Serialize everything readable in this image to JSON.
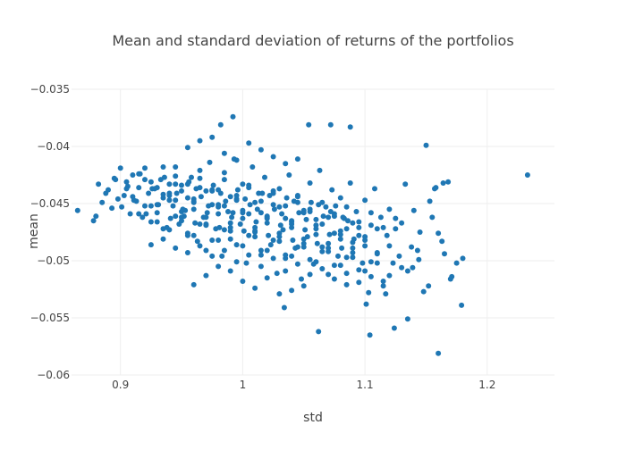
{
  "chart_data": {
    "type": "scatter",
    "title": "Mean and standard deviation of returns of the portfolios",
    "xlabel": "std",
    "ylabel": "mean",
    "xlim": [
      0.86,
      1.255
    ],
    "ylim": [
      -0.06,
      -0.035
    ],
    "x_ticks": [
      0.9,
      1.0,
      1.1,
      1.2
    ],
    "x_tick_labels": [
      "0.9",
      "1",
      "1.1",
      "1.2"
    ],
    "y_ticks": [
      -0.06,
      -0.055,
      -0.05,
      -0.045,
      -0.04,
      -0.035
    ],
    "y_tick_labels": [
      "−0.06",
      "−0.055",
      "−0.05",
      "−0.045",
      "−0.04",
      "−0.035"
    ],
    "grid": true,
    "legend": "none",
    "marker_color": "#1f77b4",
    "series": [
      {
        "x": [
          0.865,
          0.878,
          0.88,
          0.882,
          0.885,
          0.888,
          0.89,
          0.893,
          0.895,
          0.898,
          0.9,
          0.903,
          0.905,
          0.908,
          0.91,
          0.913,
          0.915,
          0.918,
          0.92,
          0.923,
          0.925,
          0.928,
          0.93,
          0.933,
          0.935,
          0.938,
          0.94,
          0.943,
          0.945,
          0.948,
          0.95,
          0.953,
          0.955,
          0.958,
          0.96,
          0.963,
          0.965,
          0.968,
          0.97,
          0.973,
          0.975,
          0.978,
          0.98,
          0.983,
          0.985,
          0.988,
          0.99,
          0.993,
          0.995,
          0.998,
          1.0,
          1.003,
          1.005,
          1.008,
          1.01,
          1.013,
          1.015,
          1.018,
          1.02,
          1.023,
          1.025,
          1.028,
          1.03,
          1.033,
          1.035,
          1.038,
          1.04,
          1.043,
          1.045,
          1.048,
          1.05,
          1.053,
          1.055,
          1.058,
          1.06,
          1.063,
          1.065,
          1.068,
          1.07,
          1.073,
          1.075,
          1.078,
          1.08,
          1.083,
          1.085,
          1.088,
          1.09,
          1.093,
          1.095,
          1.098,
          1.1,
          1.103,
          1.105,
          1.108,
          1.11,
          1.113,
          1.115,
          1.118,
          1.12,
          1.123,
          1.125,
          1.128,
          1.13,
          1.133,
          1.135,
          1.138,
          1.14,
          1.143,
          1.145,
          1.148,
          1.15,
          1.153,
          1.155,
          1.158,
          1.16,
          1.163,
          1.165,
          1.168,
          1.17,
          1.175,
          1.18,
          1.233,
          0.955,
          0.965,
          0.975,
          0.985,
          0.995,
          1.005,
          1.015,
          1.025,
          1.035,
          1.045,
          0.96,
          0.97,
          0.98,
          0.99,
          1.0,
          1.01,
          1.02,
          1.03,
          1.04,
          1.05,
          0.945,
          0.952,
          0.962,
          0.972,
          0.982,
          0.992,
          1.002,
          1.012,
          1.022,
          1.032,
          1.042,
          1.052,
          1.062,
          1.072,
          1.082,
          0.905,
          0.915,
          0.925,
          0.935,
          0.945,
          0.955,
          0.965,
          0.975,
          0.985,
          0.995,
          1.005,
          1.015,
          1.025,
          1.035,
          1.045,
          1.055,
          1.065,
          1.075,
          1.085,
          1.095,
          0.91,
          0.92,
          0.93,
          0.94,
          0.95,
          0.96,
          0.97,
          0.98,
          0.99,
          1.0,
          1.01,
          1.02,
          1.03,
          1.04,
          1.05,
          1.06,
          1.07,
          1.08,
          1.09,
          1.1,
          0.915,
          0.925,
          0.935,
          0.945,
          0.955,
          0.965,
          0.975,
          0.985,
          0.995,
          1.005,
          1.015,
          1.025,
          1.035,
          1.045,
          1.055,
          1.065,
          1.075,
          1.085,
          1.095,
          1.105,
          0.92,
          0.93,
          0.94,
          0.95,
          0.96,
          0.97,
          0.98,
          0.99,
          1.0,
          1.01,
          1.02,
          1.03,
          1.04,
          1.05,
          1.06,
          1.07,
          1.08,
          1.09,
          1.1,
          1.11,
          0.925,
          0.935,
          0.945,
          0.955,
          0.965,
          0.975,
          0.985,
          0.995,
          1.005,
          1.015,
          1.025,
          1.035,
          1.045,
          1.055,
          1.065,
          1.075,
          1.085,
          1.095,
          1.105,
          1.115,
          0.93,
          0.94,
          0.95,
          0.96,
          0.97,
          0.98,
          0.99,
          1.0,
          1.01,
          1.02,
          1.03,
          1.04,
          1.05,
          1.06,
          1.07,
          1.08,
          1.09,
          1.1,
          1.11,
          1.12,
          0.935,
          0.945,
          0.955,
          0.965,
          0.975,
          0.985,
          0.995,
          1.005,
          1.015,
          1.025,
          1.035,
          1.045,
          1.055,
          1.065,
          1.075,
          1.085,
          1.095,
          1.105,
          1.115,
          1.125,
          0.94,
          0.95,
          0.96,
          0.97,
          0.98,
          0.99,
          1.0,
          1.01,
          1.02,
          1.03,
          1.04,
          1.05,
          1.06,
          1.07,
          1.08,
          1.09,
          1.1,
          1.11,
          1.12,
          1.13,
          0.896,
          0.906,
          0.916,
          0.926,
          0.936,
          0.946,
          0.956,
          0.966,
          0.976,
          0.986,
          0.996,
          1.006,
          1.016,
          1.026,
          1.036,
          1.046,
          1.056,
          1.066,
          1.076,
          1.086,
          0.901,
          0.911,
          0.921,
          0.931,
          0.941,
          0.951,
          0.961,
          0.971,
          0.981,
          0.991,
          1.001,
          1.011,
          1.021,
          1.031,
          1.041,
          1.051,
          1.061,
          1.071,
          1.081,
          1.091,
          1.054,
          1.034,
          1.072,
          1.062,
          0.992,
          0.982,
          1.088,
          1.104,
          1.101,
          1.124,
          1.135,
          1.117,
          1.152,
          1.157,
          1.144,
          1.139,
          1.164,
          1.171,
          1.179,
          1.16
        ],
        "y": [
          -0.0456,
          -0.0465,
          -0.0461,
          -0.0433,
          -0.0449,
          -0.0441,
          -0.0438,
          -0.0454,
          -0.0428,
          -0.0446,
          -0.0419,
          -0.0443,
          -0.0431,
          -0.0459,
          -0.0425,
          -0.0448,
          -0.0436,
          -0.0462,
          -0.0419,
          -0.0441,
          -0.0452,
          -0.0437,
          -0.0466,
          -0.0429,
          -0.0445,
          -0.0471,
          -0.0433,
          -0.0452,
          -0.0418,
          -0.0468,
          -0.0439,
          -0.0456,
          -0.0478,
          -0.0427,
          -0.0449,
          -0.0483,
          -0.0436,
          -0.0462,
          -0.0491,
          -0.0414,
          -0.0451,
          -0.0472,
          -0.0438,
          -0.0496,
          -0.0423,
          -0.0457,
          -0.0481,
          -0.0411,
          -0.0446,
          -0.0468,
          -0.0433,
          -0.0502,
          -0.0459,
          -0.0418,
          -0.0475,
          -0.0441,
          -0.0495,
          -0.0427,
          -0.0462,
          -0.0486,
          -0.0451,
          -0.0511,
          -0.0437,
          -0.0473,
          -0.0498,
          -0.0425,
          -0.0466,
          -0.0489,
          -0.0443,
          -0.0516,
          -0.0456,
          -0.0479,
          -0.0432,
          -0.0503,
          -0.0464,
          -0.0421,
          -0.0488,
          -0.0453,
          -0.0512,
          -0.0438,
          -0.0476,
          -0.0496,
          -0.0445,
          -0.0463,
          -0.0521,
          -0.0432,
          -0.0484,
          -0.0457,
          -0.0471,
          -0.0502,
          -0.0447,
          -0.0528,
          -0.0469,
          -0.0437,
          -0.0493,
          -0.0462,
          -0.0518,
          -0.0478,
          -0.0455,
          -0.0502,
          -0.0472,
          -0.0496,
          -0.0467,
          -0.0433,
          -0.0509,
          -0.0488,
          -0.0456,
          -0.0491,
          -0.0475,
          -0.0527,
          -0.0399,
          -0.0448,
          -0.0462,
          -0.0436,
          -0.0476,
          -0.0483,
          -0.0494,
          -0.0431,
          -0.0516,
          -0.0502,
          -0.0498,
          -0.0425,
          -0.0401,
          -0.0395,
          -0.0392,
          -0.0406,
          -0.0412,
          -0.0397,
          -0.0403,
          -0.0409,
          -0.0415,
          -0.0411,
          -0.0521,
          -0.0513,
          -0.0505,
          -0.0509,
          -0.0518,
          -0.0524,
          -0.0515,
          -0.0529,
          -0.0526,
          -0.0522,
          -0.0447,
          -0.0461,
          -0.0437,
          -0.0452,
          -0.0441,
          -0.0458,
          -0.0446,
          -0.0455,
          -0.0443,
          -0.0459,
          -0.0448,
          -0.0464,
          -0.0451,
          -0.0457,
          -0.0462,
          -0.0437,
          -0.0424,
          -0.0431,
          -0.0442,
          -0.0433,
          -0.0445,
          -0.0428,
          -0.0439,
          -0.0452,
          -0.0447,
          -0.0436,
          -0.0458,
          -0.0441,
          -0.0463,
          -0.0449,
          -0.0455,
          -0.0468,
          -0.0459,
          -0.0472,
          -0.0478,
          -0.0444,
          -0.0452,
          -0.0458,
          -0.0447,
          -0.0462,
          -0.0455,
          -0.0468,
          -0.0459,
          -0.0471,
          -0.0463,
          -0.0474,
          -0.0467,
          -0.0479,
          -0.0471,
          -0.0485,
          -0.0477,
          -0.0489,
          -0.0481,
          -0.0493,
          -0.0487,
          -0.0459,
          -0.0466,
          -0.0472,
          -0.0461,
          -0.0476,
          -0.0468,
          -0.0482,
          -0.0473,
          -0.0486,
          -0.0478,
          -0.0491,
          -0.0482,
          -0.0495,
          -0.0488,
          -0.0499,
          -0.0492,
          -0.0504,
          -0.0497,
          -0.0508,
          -0.0501,
          -0.0429,
          -0.0436,
          -0.0441,
          -0.0434,
          -0.0446,
          -0.0439,
          -0.0451,
          -0.0444,
          -0.0456,
          -0.0449,
          -0.0461,
          -0.0453,
          -0.0465,
          -0.0458,
          -0.0469,
          -0.0462,
          -0.0474,
          -0.0467,
          -0.0479,
          -0.0472,
          -0.0486,
          -0.0481,
          -0.0489,
          -0.0493,
          -0.0487,
          -0.0496,
          -0.0491,
          -0.0501,
          -0.0495,
          -0.0505,
          -0.0498,
          -0.0509,
          -0.0503,
          -0.0512,
          -0.0507,
          -0.0516,
          -0.0511,
          -0.0519,
          -0.0514,
          -0.0522,
          -0.0451,
          -0.0443,
          -0.0457,
          -0.0448,
          -0.0462,
          -0.0453,
          -0.0467,
          -0.0458,
          -0.0471,
          -0.0463,
          -0.0476,
          -0.0468,
          -0.0481,
          -0.0472,
          -0.0485,
          -0.0477,
          -0.0489,
          -0.0482,
          -0.0494,
          -0.0487,
          -0.0418,
          -0.0426,
          -0.0433,
          -0.0421,
          -0.0438,
          -0.0429,
          -0.0443,
          -0.0434,
          -0.0448,
          -0.0439,
          -0.0452,
          -0.0444,
          -0.0457,
          -0.0449,
          -0.0461,
          -0.0453,
          -0.0466,
          -0.0458,
          -0.0471,
          -0.0463,
          -0.0473,
          -0.0465,
          -0.0478,
          -0.0469,
          -0.0482,
          -0.0474,
          -0.0487,
          -0.0479,
          -0.0491,
          -0.0483,
          -0.0496,
          -0.0488,
          -0.0501,
          -0.0492,
          -0.0504,
          -0.0497,
          -0.0509,
          -0.0502,
          -0.0513,
          -0.0506,
          -0.0429,
          -0.0435,
          -0.0424,
          -0.0437,
          -0.0427,
          -0.0441,
          -0.0431,
          -0.0444,
          -0.0434,
          -0.0448,
          -0.0438,
          -0.0451,
          -0.0441,
          -0.0455,
          -0.0445,
          -0.0458,
          -0.0449,
          -0.0461,
          -0.0452,
          -0.0465,
          -0.0453,
          -0.0447,
          -0.0459,
          -0.0451,
          -0.0463,
          -0.0455,
          -0.0467,
          -0.0458,
          -0.0471,
          -0.0462,
          -0.0474,
          -0.0466,
          -0.0478,
          -0.0469,
          -0.0482,
          -0.0473,
          -0.0485,
          -0.0477,
          -0.0489,
          -0.0481,
          -0.0381,
          -0.0541,
          -0.0381,
          -0.0562,
          -0.0374,
          -0.0381,
          -0.0383,
          -0.0565,
          -0.0538,
          -0.0559,
          -0.0551,
          -0.0529,
          -0.0522,
          -0.0437,
          -0.0499,
          -0.0506,
          -0.0432,
          -0.0514,
          -0.0539,
          -0.0581
        ]
      }
    ]
  }
}
